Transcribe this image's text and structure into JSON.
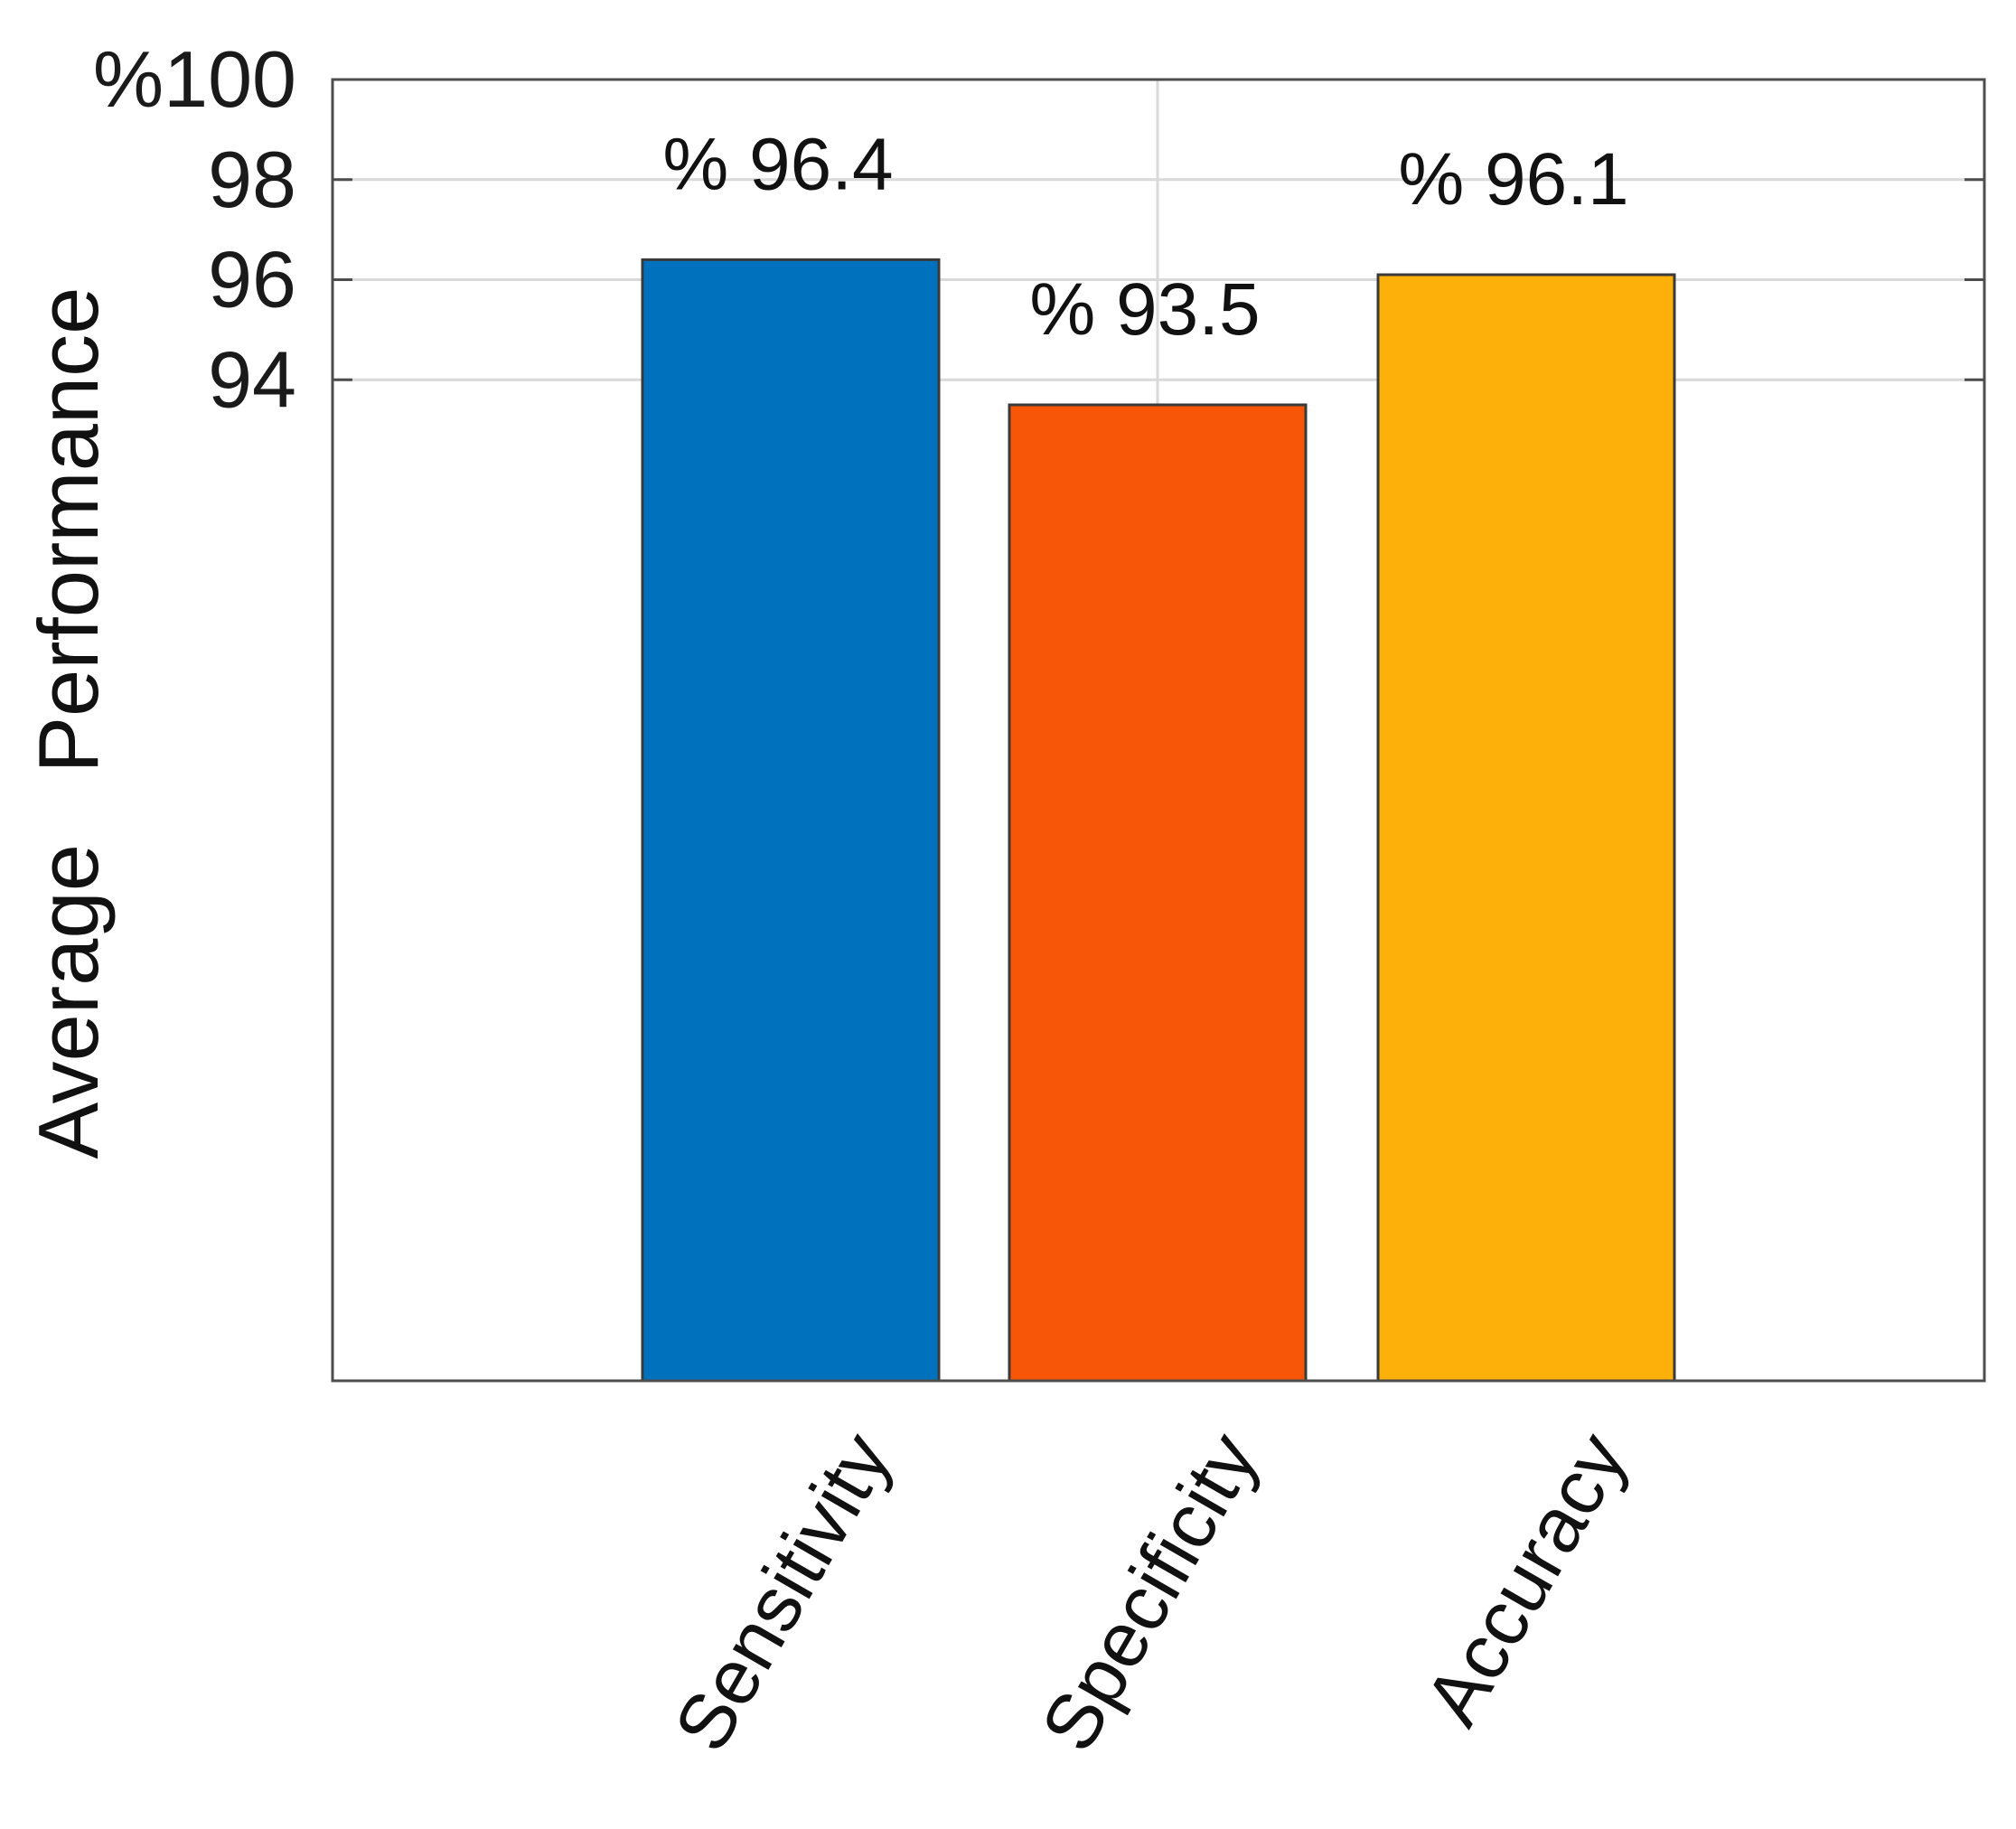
{
  "chart_data": {
    "type": "bar",
    "ylabel": "Average   Performance",
    "categories": [
      "Sensitivity",
      "Specificity",
      "Accuracy"
    ],
    "values": [
      96.4,
      93.5,
      96.1
    ],
    "data_labels": [
      "% 96.4",
      "% 93.5",
      "% 96.1"
    ],
    "colors": [
      "#0072BD",
      "#F75508",
      "#FDB00A"
    ],
    "ylim": [
      74,
      100
    ],
    "yticks": [
      {
        "value": 94,
        "label": "94"
      },
      {
        "value": 96,
        "label": "96"
      },
      {
        "value": 98,
        "label": "98"
      },
      {
        "value": 100,
        "label": "%100"
      }
    ],
    "grid": true
  }
}
